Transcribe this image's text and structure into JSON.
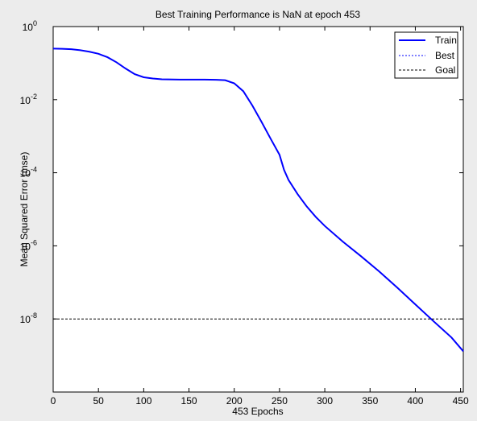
{
  "chart_data": {
    "type": "line",
    "title": "Best Training Performance is NaN at epoch 453",
    "xlabel": "453 Epochs",
    "ylabel": "Mean Squared Error  (mse)",
    "xlim": [
      0,
      453
    ],
    "ylim_exp": [
      -10,
      0
    ],
    "y_scale": "log",
    "x_ticks": [
      0,
      50,
      100,
      150,
      200,
      250,
      300,
      350,
      400,
      450
    ],
    "y_ticks": [
      {
        "base": "10",
        "exp": "0",
        "value": 1
      },
      {
        "base": "10",
        "exp": "-2",
        "value": 0.01
      },
      {
        "base": "10",
        "exp": "-4",
        "value": 0.0001
      },
      {
        "base": "10",
        "exp": "-6",
        "value": 1e-06
      },
      {
        "base": "10",
        "exp": "-8",
        "value": 1e-08
      }
    ],
    "legend_position": "top-right",
    "series": [
      {
        "name": "Train",
        "color": "#0000ff",
        "style": "solid",
        "x": [
          0,
          10,
          20,
          30,
          40,
          50,
          60,
          70,
          80,
          90,
          100,
          110,
          120,
          140,
          160,
          180,
          190,
          200,
          210,
          220,
          230,
          240,
          250,
          255,
          260,
          270,
          280,
          290,
          300,
          320,
          340,
          360,
          380,
          400,
          420,
          440,
          453
        ],
        "y": [
          0.25,
          0.247,
          0.24,
          0.225,
          0.205,
          0.18,
          0.145,
          0.105,
          0.071,
          0.05,
          0.041,
          0.038,
          0.036,
          0.0355,
          0.0355,
          0.035,
          0.034,
          0.028,
          0.017,
          0.0069,
          0.0025,
          0.00087,
          0.00031,
          0.00012,
          6.3e-05,
          2.6e-05,
          1.2e-05,
          6.2e-06,
          3.5e-06,
          1.3e-06,
          5.2e-07,
          2e-07,
          7.2e-08,
          2.5e-08,
          8.7e-09,
          3.1e-09,
          1.3e-09
        ]
      },
      {
        "name": "Best",
        "color": "#0000ff",
        "style": "dotted",
        "x": [],
        "y": []
      },
      {
        "name": "Goal",
        "color": "#000000",
        "style": "dashed",
        "x": [
          0,
          453
        ],
        "y": [
          1e-08,
          1e-08
        ]
      }
    ]
  }
}
